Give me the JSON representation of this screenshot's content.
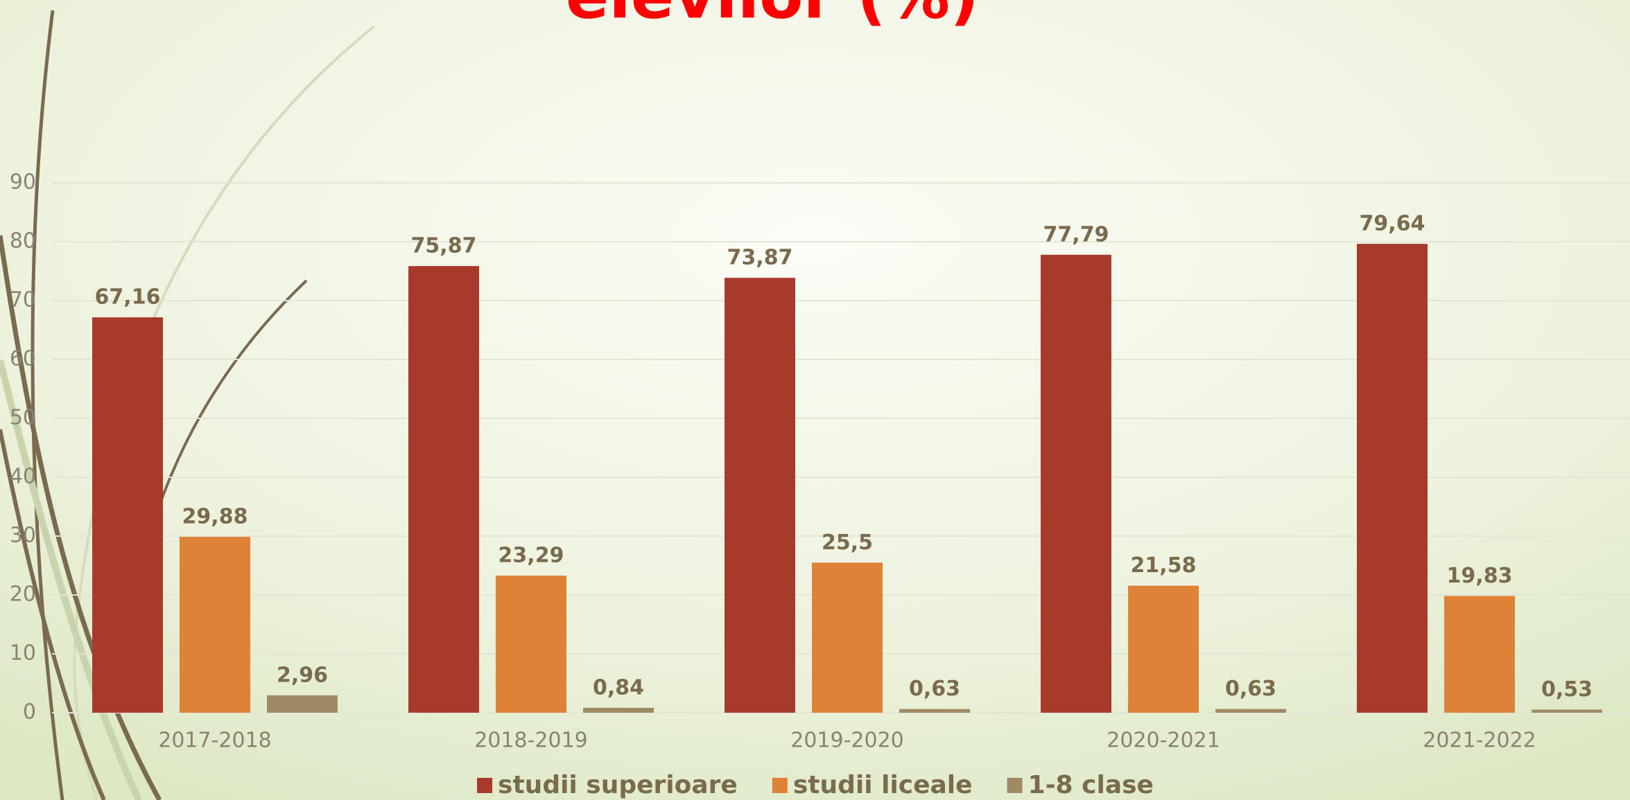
{
  "chart_data": {
    "type": "bar",
    "title": "elevilor (%)",
    "categories": [
      "2017-2018",
      "2018-2019",
      "2019-2020",
      "2020-2021",
      "2021-2022"
    ],
    "series": [
      {
        "name": "studii superioare",
        "color": "#a83a2c",
        "values": [
          67.16,
          75.87,
          73.87,
          77.79,
          79.64
        ],
        "value_labels": [
          "67,16",
          "75,87",
          "73,87",
          "77,79",
          "79,64"
        ]
      },
      {
        "name": "studii liceale",
        "color": "#de8237",
        "values": [
          29.88,
          23.29,
          25.5,
          21.58,
          19.83
        ],
        "value_labels": [
          "29,88",
          "23,29",
          "25,5",
          "21,58",
          "19,83"
        ]
      },
      {
        "name": "1-8 clase",
        "color": "#a08a64",
        "values": [
          2.96,
          0.84,
          0.63,
          0.63,
          0.53
        ],
        "value_labels": [
          "2,96",
          "0,84",
          "0,63",
          "0,63",
          "0,53"
        ]
      }
    ],
    "ylim": [
      0,
      90
    ],
    "yticks": [
      0,
      10,
      20,
      30,
      40,
      50,
      60,
      70,
      80,
      90
    ],
    "grid": true
  }
}
